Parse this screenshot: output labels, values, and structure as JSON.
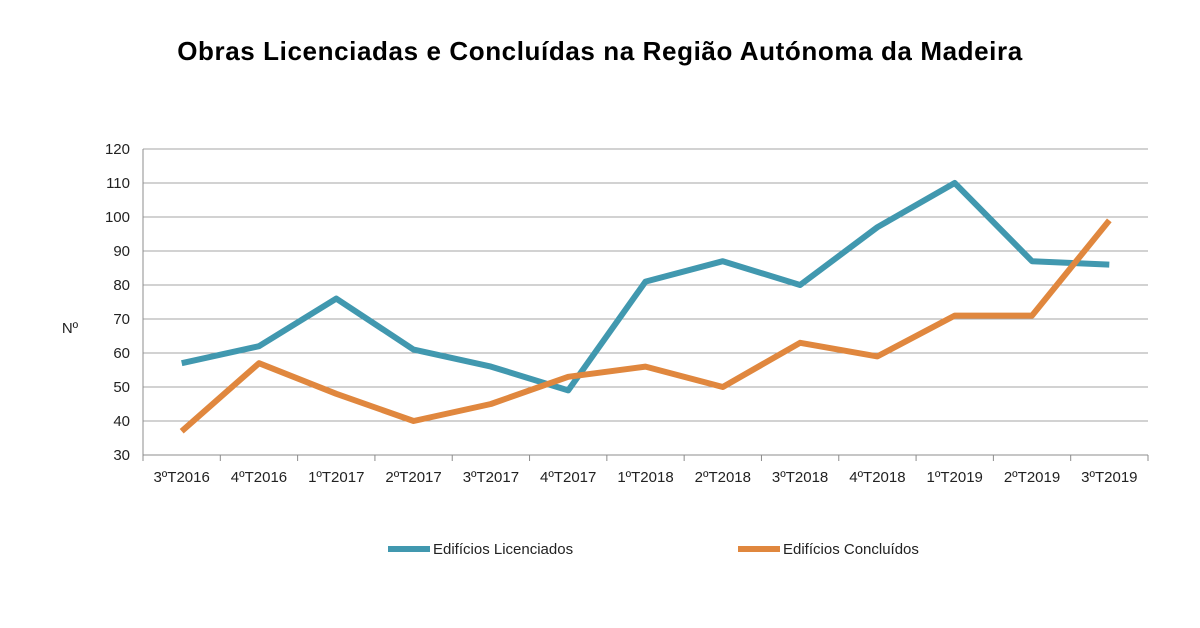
{
  "chart_data": {
    "type": "line",
    "title": "Obras Licenciadas e Concluídas na Região Autónoma da Madeira",
    "ylabel": "Nº",
    "xlabel": "",
    "categories": [
      "3ºT2016",
      "4ºT2016",
      "1ºT2017",
      "2ºT2017",
      "3ºT2017",
      "4ºT2017",
      "1ºT2018",
      "2ºT2018",
      "3ºT2018",
      "4ºT2018",
      "1ºT2019",
      "2ºT2019",
      "3ºT2019"
    ],
    "ylim": [
      30,
      120
    ],
    "yticks": [
      30,
      40,
      50,
      60,
      70,
      80,
      90,
      100,
      110,
      120
    ],
    "grid": true,
    "legend_position": "bottom",
    "series": [
      {
        "name": "Edifícios Licenciados",
        "color": "#4198AF",
        "values": [
          57,
          62,
          76,
          61,
          56,
          49,
          81,
          87,
          80,
          97,
          110,
          87,
          86
        ]
      },
      {
        "name": "Edifícios Concluídos",
        "color": "#E0873E",
        "values": [
          37,
          57,
          48,
          40,
          45,
          53,
          56,
          50,
          63,
          59,
          71,
          71,
          99
        ]
      }
    ]
  }
}
